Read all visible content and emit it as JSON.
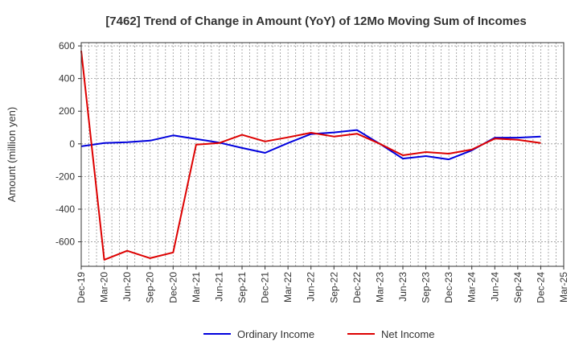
{
  "chart_data": {
    "type": "line",
    "title": "[7462]  Trend of Change in Amount (YoY) of 12Mo Moving Sum of Incomes",
    "ylabel": "Amount (million yen)",
    "xlabel": "",
    "ylim": [
      -750,
      620
    ],
    "yticks": [
      600,
      400,
      200,
      0,
      -200,
      -400,
      -600
    ],
    "ytick_labels": [
      "600",
      "400",
      "200",
      "0",
      "-200",
      "-400",
      "-600"
    ],
    "categories": [
      "Dec-19",
      "Mar-20",
      "Jun-20",
      "Sep-20",
      "Dec-20",
      "Mar-21",
      "Jun-21",
      "Sep-21",
      "Dec-21",
      "Mar-22",
      "Jun-22",
      "Sep-22",
      "Dec-22",
      "Mar-23",
      "Jun-23",
      "Sep-23",
      "Dec-23",
      "Mar-24",
      "Jun-24",
      "Sep-24",
      "Dec-24",
      "Mar-25"
    ],
    "series": [
      {
        "name": "Ordinary Income",
        "color": "#0000dd",
        "values": [
          -15,
          5,
          10,
          20,
          52,
          30,
          8,
          -25,
          -55,
          5,
          60,
          70,
          85,
          0,
          -90,
          -75,
          -95,
          -40,
          38,
          38,
          45,
          null
        ]
      },
      {
        "name": "Net Income",
        "color": "#dd0000",
        "values": [
          570,
          -710,
          -655,
          -700,
          -665,
          -5,
          5,
          55,
          15,
          40,
          68,
          45,
          62,
          0,
          -70,
          -50,
          -60,
          -35,
          32,
          25,
          5,
          null
        ]
      }
    ],
    "grid": true,
    "legend_position": "bottom-center"
  }
}
